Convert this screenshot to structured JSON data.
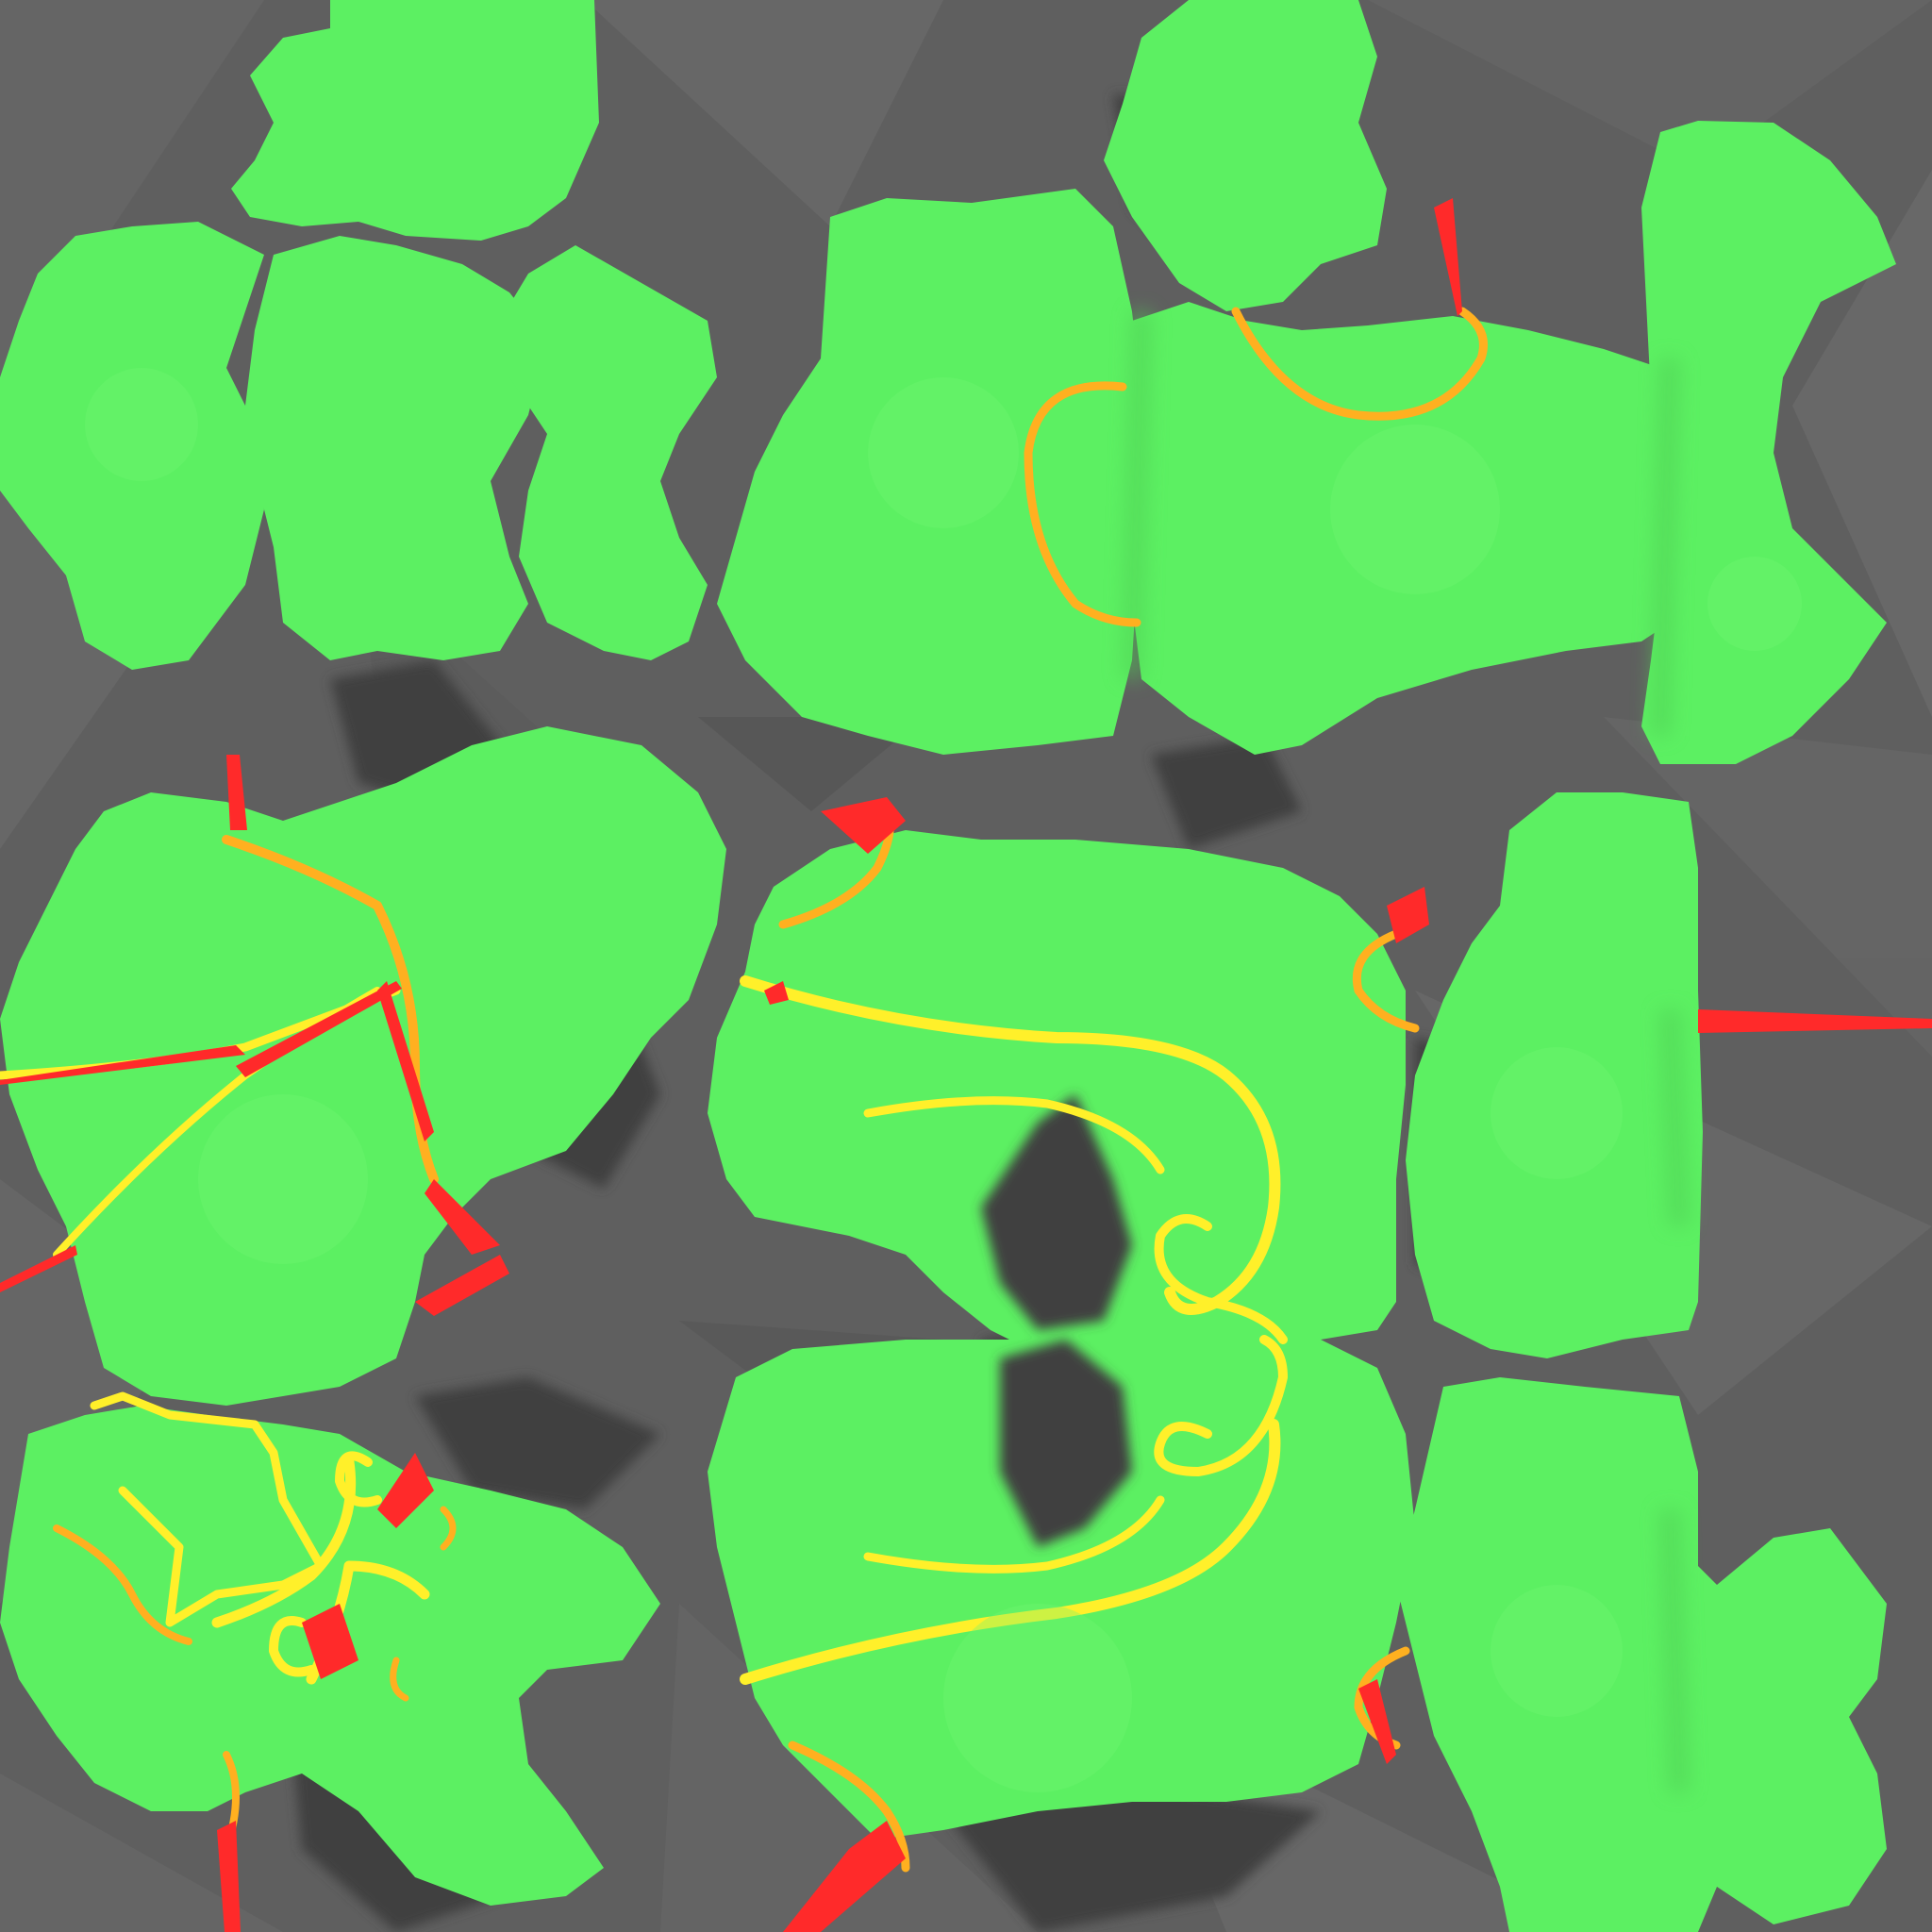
{
  "texture": {
    "colors": {
      "background": "#5f5f5f",
      "background_light": "#7a7a7a",
      "background_dark": "#3d3d3d",
      "patch": "#5cf062",
      "patch_highlight": "#6ff574",
      "patch_shadow": "#3f3f3f",
      "stroke_yellow": "#fff02a",
      "stroke_orange": "#ffb020",
      "stroke_red": "#ff2a2a"
    },
    "description_labels": []
  }
}
